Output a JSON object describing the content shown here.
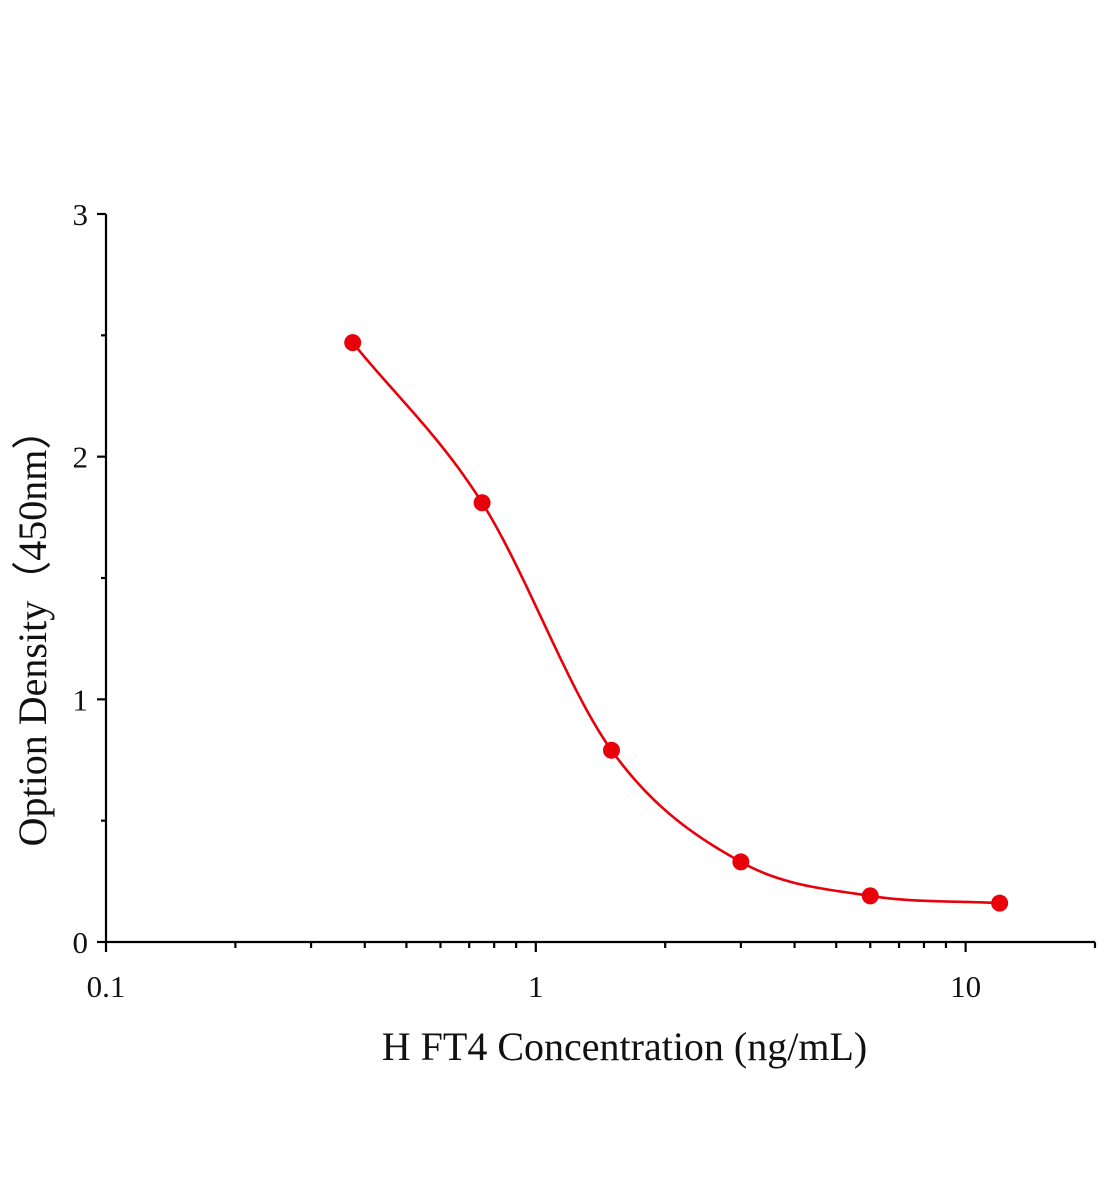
{
  "chart_data": {
    "type": "scatter",
    "title": "",
    "xlabel": "H FT4 Concentration (ng/mL)",
    "ylabel": "Option Density（450nm）",
    "x_scale": "log",
    "xlim": [
      0.1,
      20
    ],
    "ylim": [
      0,
      3
    ],
    "x_ticks": [
      0.1,
      1,
      10
    ],
    "x_tick_labels": [
      "0.1",
      "1",
      "10"
    ],
    "y_ticks": [
      0,
      1,
      2,
      3
    ],
    "y_tick_labels": [
      "0",
      "1",
      "2",
      "3"
    ],
    "grid": false,
    "legend": "none",
    "series": [
      {
        "x": [
          0.375,
          0.75,
          1.5,
          3,
          6,
          12
        ],
        "y": [
          2.47,
          1.81,
          0.79,
          0.33,
          0.19,
          0.16
        ],
        "color": "#e8000b",
        "fit": "four-parameter logistic curve"
      }
    ]
  }
}
